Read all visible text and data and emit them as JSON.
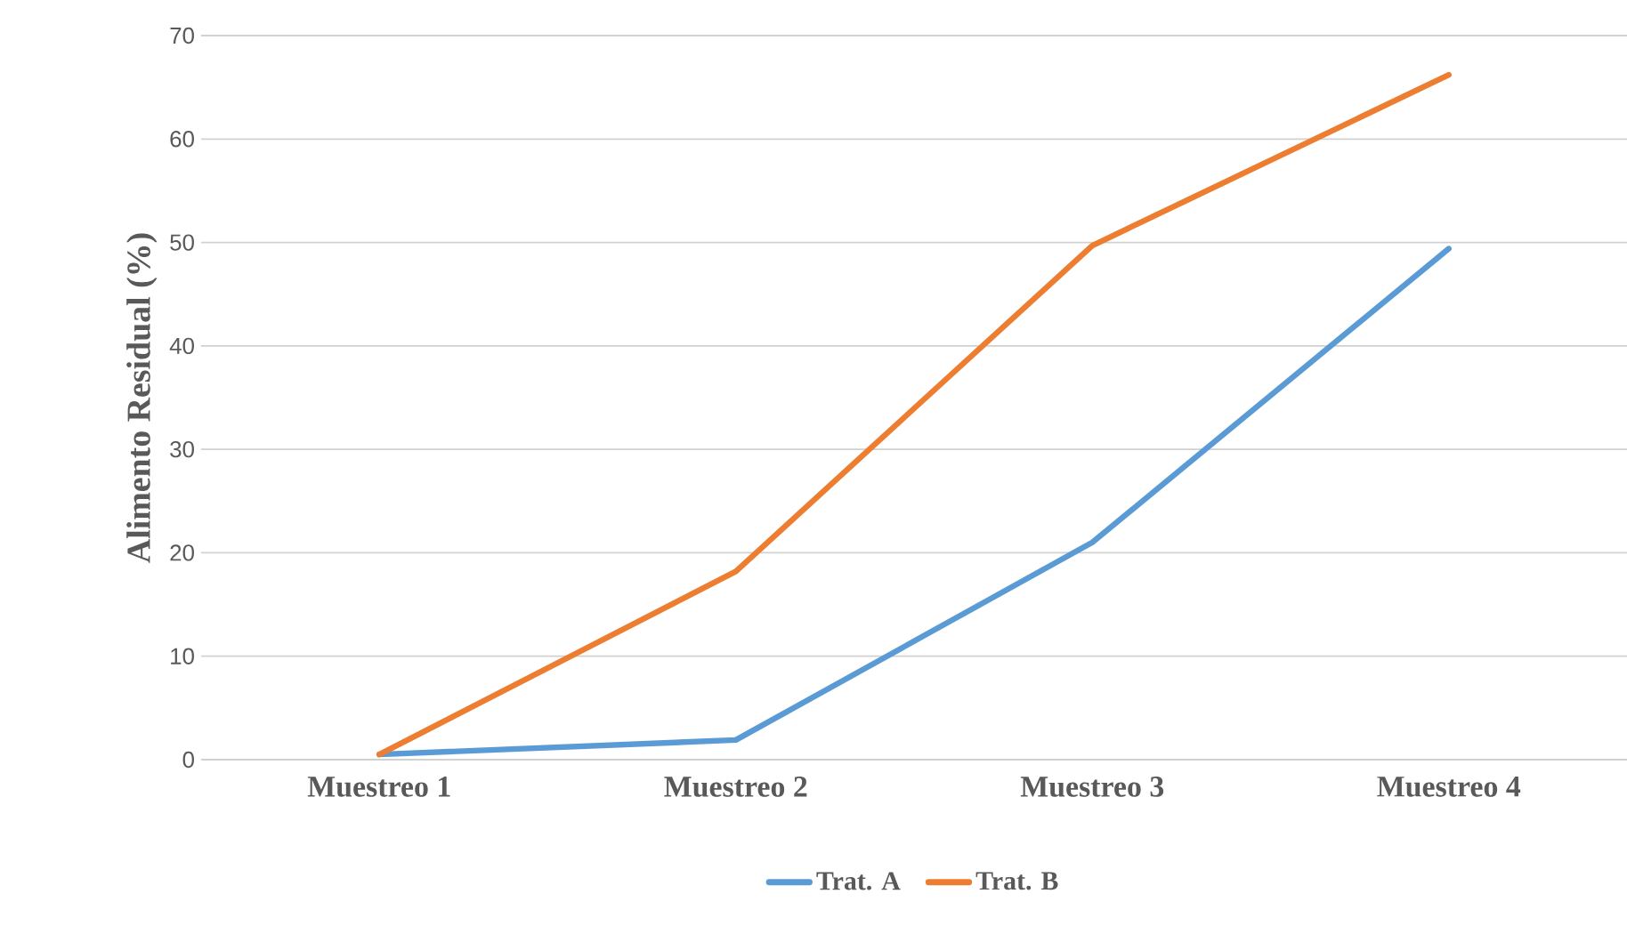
{
  "chart_data": {
    "type": "line",
    "ylabel": "Alimento Residual (%)",
    "categories": [
      "Muestreo 1",
      "Muestreo 2",
      "Muestreo 3",
      "Muestreo 4"
    ],
    "series": [
      {
        "name": "Trat. A",
        "color": "#5b9bd5",
        "values": [
          0.5,
          1.9,
          21,
          49.4
        ]
      },
      {
        "name": "Trat. B",
        "color": "#ed7d31",
        "values": [
          0.5,
          18.2,
          49.7,
          66.2
        ]
      }
    ],
    "ylim": [
      0,
      70
    ],
    "yticks": [
      0,
      10,
      20,
      30,
      40,
      50,
      60,
      70
    ],
    "grid": "y",
    "legend": "bottom",
    "marker": "none",
    "line_style": "solid"
  }
}
